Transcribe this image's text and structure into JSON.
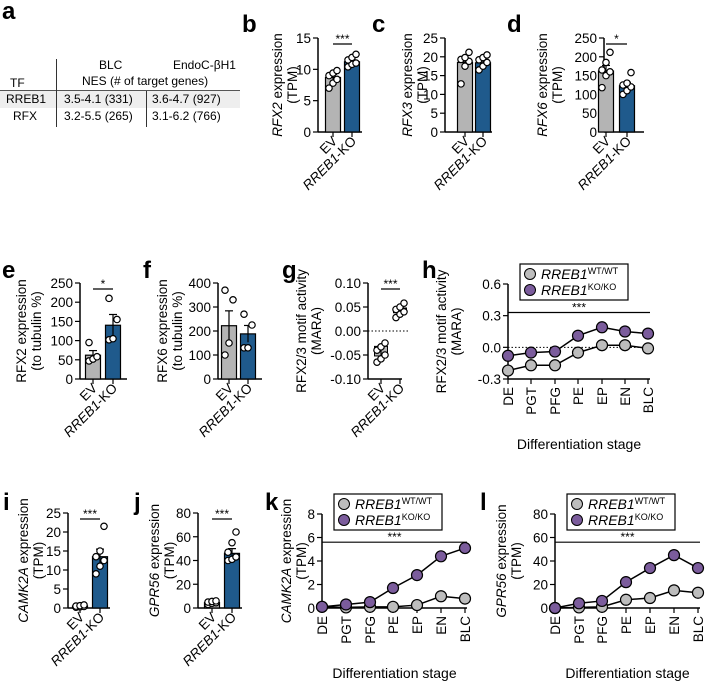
{
  "colors": {
    "ev_bar": "#b4b4b4",
    "ko_bar": "#1f5a8c",
    "wt_marker": "#bdbdbd",
    "ko_marker": "#7b5c9c",
    "axis": "#000000"
  },
  "table": {
    "panel": "a",
    "header_tf": "TF",
    "header_blc": "BLC",
    "header_endo": "EndoC-βH1",
    "header_nes": "NES (# of target genes)",
    "rows": [
      {
        "tf": "RREB1",
        "blc": "3.5-4.1 (331)",
        "endo": "3.6-4.7 (927)"
      },
      {
        "tf": "RFX",
        "blc": "3.2-5.5 (265)",
        "endo": "3.1-6.2 (766)"
      }
    ]
  },
  "chart_data": [
    {
      "panel": "b",
      "type": "bar",
      "categories": [
        "EV",
        "RREB1-KO"
      ],
      "values": [
        8.7,
        11.2
      ],
      "errors": [
        0.5,
        0.3
      ],
      "points": [
        [
          7.0,
          7.8,
          8.4,
          9.0,
          9.4,
          9.8
        ],
        [
          10.4,
          10.8,
          11.0,
          11.5,
          11.9,
          12.4
        ]
      ],
      "ylabel_gene": "RFX2",
      "ylabel": " expression",
      "ylabel2": "(TPM)",
      "ylim": [
        0,
        15
      ],
      "yticks": [
        0,
        5,
        10,
        15
      ],
      "significance": "***"
    },
    {
      "panel": "c",
      "type": "bar",
      "categories": [
        "EV",
        "RREB1-KO"
      ],
      "values": [
        18.5,
        18.4
      ],
      "errors": [
        1.2,
        0.7
      ],
      "points": [
        [
          12.8,
          17.5,
          18.8,
          19.3,
          19.8,
          21.2
        ],
        [
          16.5,
          17.5,
          18.5,
          19.2,
          19.8,
          20.5
        ]
      ],
      "ylabel_gene": "RFX3",
      "ylabel": " expression",
      "ylabel2": "(TPM)",
      "ylim": [
        0,
        25
      ],
      "yticks": [
        0,
        5,
        10,
        15,
        20,
        25
      ],
      "significance": ""
    },
    {
      "panel": "d",
      "type": "bar",
      "categories": [
        "EV",
        "RREB1-KO"
      ],
      "values": [
        162,
        123
      ],
      "errors": [
        15,
        9
      ],
      "points": [
        [
          118,
          150,
          160,
          165,
          185,
          212
        ],
        [
          100,
          110,
          120,
          125,
          130,
          158
        ]
      ],
      "ylabel_gene": "RFX6",
      "ylabel": " expression",
      "ylabel2": "(TPM)",
      "ylim": [
        0,
        250
      ],
      "yticks": [
        0,
        50,
        100,
        150,
        200,
        250
      ],
      "significance": "*"
    },
    {
      "panel": "e",
      "type": "bar",
      "categories": [
        "EV",
        "RREB1-KO"
      ],
      "values": [
        62,
        140
      ],
      "errors": [
        12,
        28
      ],
      "points": [
        [
          47,
          52,
          58,
          95
        ],
        [
          102,
          105,
          155,
          210
        ]
      ],
      "ylabel_gene": "",
      "ylabel": "RFX2 expression",
      "ylabel2": "(to tubulin %)",
      "ylim": [
        0,
        250
      ],
      "yticks": [
        0,
        50,
        100,
        150,
        200,
        250
      ],
      "significance": "*"
    },
    {
      "panel": "f",
      "type": "bar",
      "categories": [
        "EV",
        "RREB1-KO"
      ],
      "values": [
        222,
        188
      ],
      "errors": [
        62,
        35
      ],
      "points": [
        [
          100,
          150,
          330,
          370
        ],
        [
          130,
          130,
          225,
          270
        ]
      ],
      "ylabel_gene": "",
      "ylabel": "RFX6 expression",
      "ylabel2": "(to tubulin %)",
      "ylim": [
        0,
        400
      ],
      "yticks": [
        0,
        100,
        200,
        300,
        400
      ],
      "significance": ""
    },
    {
      "panel": "g",
      "type": "box",
      "categories": [
        "EV",
        "RREB1-KO"
      ],
      "values": [
        -0.042,
        0.043
      ],
      "errors": [
        0.01,
        0.005
      ],
      "points": [
        [
          -0.065,
          -0.058,
          -0.05,
          -0.04,
          -0.033,
          -0.025
        ],
        [
          0.028,
          0.035,
          0.04,
          0.045,
          0.05,
          0.058
        ]
      ],
      "ylabel_gene": "",
      "ylabel": "RFX2/3 motif activity",
      "ylabel2": "(MARA)",
      "ylim": [
        -0.1,
        0.1
      ],
      "yticks": [
        -0.1,
        -0.05,
        0.0,
        0.05,
        0.1
      ],
      "ytick_labels": [
        "-0.10",
        "-0.05",
        "0.00",
        "0.05",
        "0.10"
      ],
      "significance": "***"
    },
    {
      "panel": "h",
      "type": "line",
      "x": [
        "DE",
        "PGT",
        "PFG",
        "PE",
        "EP",
        "EN",
        "BLC"
      ],
      "series": [
        {
          "name": "RREB1",
          "sup": "WT/WT",
          "values": [
            -0.22,
            -0.17,
            -0.17,
            -0.05,
            0.02,
            0.02,
            -0.01
          ]
        },
        {
          "name": "RREB1",
          "sup": "KO/KO",
          "values": [
            -0.08,
            -0.05,
            -0.04,
            0.11,
            0.19,
            0.15,
            0.13
          ]
        }
      ],
      "ylabel": "RFX2/3 motif activity",
      "ylabel2": "(MARA)",
      "xlabel": "Differentiation stage",
      "ylim": [
        -0.3,
        0.6
      ],
      "yticks": [
        -0.3,
        0.0,
        0.3,
        0.6
      ],
      "ytick_labels": [
        "-0.3",
        "0.0",
        "0.3",
        "0.6"
      ],
      "significance": "***",
      "zero_line": true,
      "legend": "top-left"
    },
    {
      "panel": "i",
      "type": "bar",
      "categories": [
        "EV",
        "RREB1-KO"
      ],
      "values": [
        0.5,
        13.5
      ],
      "errors": [
        0.1,
        2.0
      ],
      "points": [
        [
          0.2,
          0.3,
          0.4,
          0.5,
          0.6,
          0.8
        ],
        [
          9.0,
          11.0,
          12.5,
          13.5,
          15.0,
          21.5
        ]
      ],
      "ylabel_gene": "CAMK2A",
      "ylabel": " expression",
      "ylabel2": "(TPM)",
      "ylim": [
        0,
        25
      ],
      "yticks": [
        0,
        5,
        10,
        15,
        20,
        25
      ],
      "significance": "***"
    },
    {
      "panel": "j",
      "type": "bar",
      "categories": [
        "EV",
        "RREB1-KO"
      ],
      "values": [
        4.5,
        46
      ],
      "errors": [
        0.6,
        4
      ],
      "points": [
        [
          3,
          4,
          4.5,
          5,
          5.5,
          6
        ],
        [
          40,
          41,
          43,
          47,
          55,
          64
        ]
      ],
      "ylabel_gene": "GPR56",
      "ylabel": " expression",
      "ylabel2": "(TPM)",
      "ylim": [
        0,
        80
      ],
      "yticks": [
        0,
        20,
        40,
        60,
        80
      ],
      "significance": "***"
    },
    {
      "panel": "k",
      "type": "line",
      "x": [
        "DE",
        "PGT",
        "PFG",
        "PE",
        "EP",
        "EN",
        "BLC"
      ],
      "series": [
        {
          "name": "RREB1",
          "sup": "WT/WT",
          "values": [
            0.1,
            0.05,
            0.1,
            0.1,
            0.25,
            1.0,
            0.8
          ]
        },
        {
          "name": "RREB1",
          "sup": "KO/KO",
          "values": [
            0.1,
            0.3,
            0.5,
            1.7,
            2.8,
            4.4,
            5.1
          ]
        }
      ],
      "ylabel_gene": "CAMK2A",
      "ylabel": " expression",
      "ylabel2": "(TPM)",
      "xlabel": "Differentiation stage",
      "ylim": [
        0,
        8
      ],
      "yticks": [
        0,
        2,
        4,
        6,
        8
      ],
      "significance": "***",
      "legend": "top-left"
    },
    {
      "panel": "l",
      "type": "line",
      "x": [
        "DE",
        "PGT",
        "PFG",
        "PE",
        "EP",
        "EN",
        "BLC"
      ],
      "series": [
        {
          "name": "RREB1",
          "sup": "WT/WT",
          "values": [
            0,
            0.5,
            1,
            7,
            8.5,
            15,
            13
          ]
        },
        {
          "name": "RREB1",
          "sup": "KO/KO",
          "values": [
            0,
            4,
            6,
            22,
            34,
            45,
            34
          ]
        }
      ],
      "ylabel_gene": "GPR56",
      "ylabel": " expression",
      "ylabel2": "(TPM)",
      "xlabel": "Differentiation stage",
      "ylim": [
        0,
        80
      ],
      "yticks": [
        0,
        20,
        40,
        60,
        80
      ],
      "significance": "***",
      "legend": "top-left"
    }
  ]
}
